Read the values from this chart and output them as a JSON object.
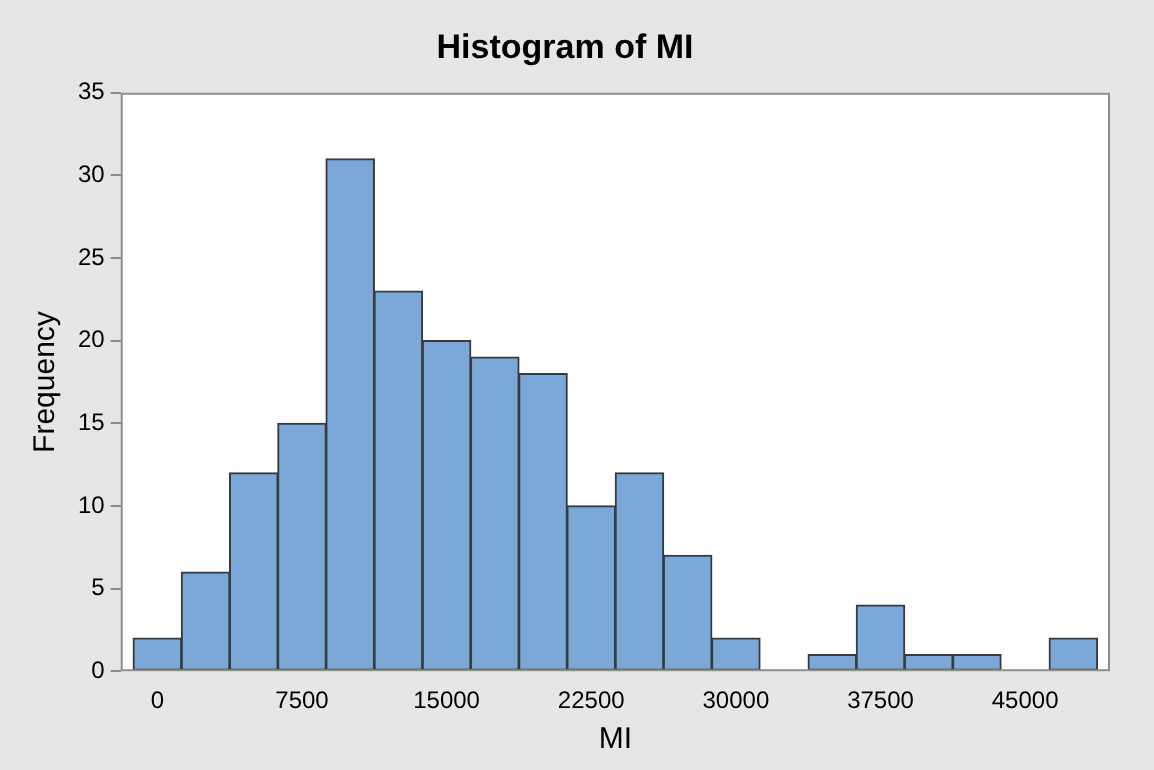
{
  "chart_data": {
    "type": "histogram",
    "title": "Histogram of MI",
    "xlabel": "MI",
    "ylabel": "Frequency",
    "bins": [
      -1250,
      1250,
      3750,
      6250,
      8750,
      11250,
      13750,
      16250,
      18750,
      21250,
      23750,
      26250,
      28750,
      31250,
      33750,
      36250,
      38750,
      41250,
      43750,
      46250,
      48750
    ],
    "values": [
      2,
      6,
      12,
      15,
      31,
      23,
      20,
      19,
      18,
      10,
      12,
      7,
      2,
      0,
      1,
      4,
      1,
      1,
      0,
      2
    ],
    "color": "#7ba7d9",
    "xlim": [
      -1900,
      49400
    ],
    "xticks": [
      0,
      7500,
      15000,
      22500,
      30000,
      37500,
      45000
    ],
    "ylim": [
      0,
      35
    ],
    "yticks": [
      0,
      5,
      10,
      15,
      20,
      25,
      30,
      35
    ],
    "grid": false,
    "legend": false
  }
}
